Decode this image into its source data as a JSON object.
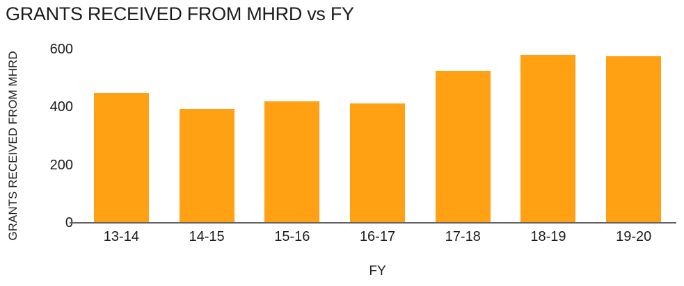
{
  "chart_data": {
    "type": "bar",
    "title": "GRANTS RECEIVED FROM MHRD vs FY",
    "categories": [
      "13-14",
      "14-15",
      "15-16",
      "16-17",
      "17-18",
      "18-19",
      "19-20"
    ],
    "values": [
      450,
      393,
      420,
      414,
      525,
      582,
      576
    ],
    "xlabel": "FY",
    "ylabel": "GRANTS RECEIVED FROM MHRD",
    "yticks": [
      0,
      200,
      400,
      600
    ],
    "ylim": [
      0,
      600
    ],
    "grid": false,
    "legend": "none",
    "bar_color": "#FFA113",
    "axis_line_color": "#636363",
    "text_color": "#1C1C1C"
  }
}
